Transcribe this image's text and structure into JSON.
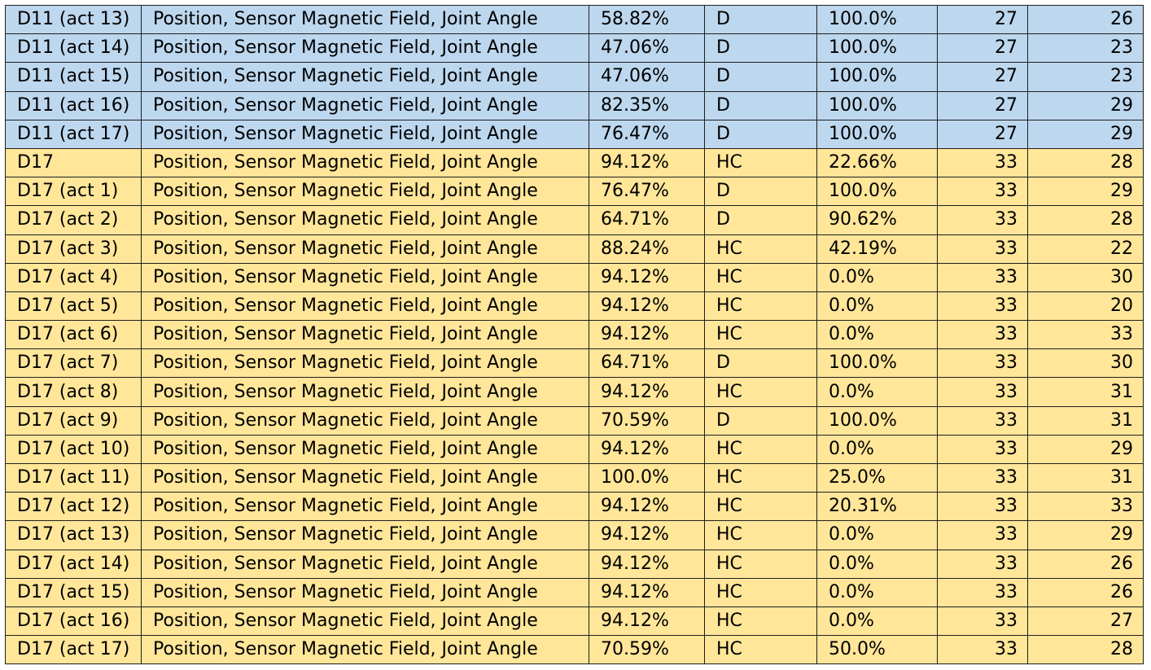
{
  "colors": {
    "blue_row": "#bdd7ee",
    "yellow_row": "#ffe699"
  },
  "table": {
    "rows": [
      {
        "condition": "D11 (act 13)",
        "sensors": "Position, Sensor Magnetic Field, Joint Angle",
        "accuracy": "58.82%",
        "class": "D",
        "percent": "100.0%",
        "n1": "27",
        "n2": "26",
        "group": "blue"
      },
      {
        "condition": "D11 (act 14)",
        "sensors": "Position, Sensor Magnetic Field, Joint Angle",
        "accuracy": "47.06%",
        "class": "D",
        "percent": "100.0%",
        "n1": "27",
        "n2": "23",
        "group": "blue"
      },
      {
        "condition": "D11 (act 15)",
        "sensors": "Position, Sensor Magnetic Field, Joint Angle",
        "accuracy": "47.06%",
        "class": "D",
        "percent": "100.0%",
        "n1": "27",
        "n2": "23",
        "group": "blue"
      },
      {
        "condition": "D11 (act 16)",
        "sensors": "Position, Sensor Magnetic Field, Joint Angle",
        "accuracy": "82.35%",
        "class": "D",
        "percent": "100.0%",
        "n1": "27",
        "n2": "29",
        "group": "blue"
      },
      {
        "condition": "D11 (act 17)",
        "sensors": "Position, Sensor Magnetic Field, Joint Angle",
        "accuracy": "76.47%",
        "class": "D",
        "percent": "100.0%",
        "n1": "27",
        "n2": "29",
        "group": "blue"
      },
      {
        "condition": "D17",
        "sensors": "Position, Sensor Magnetic Field, Joint Angle",
        "accuracy": "94.12%",
        "class": "HC",
        "percent": "22.66%",
        "n1": "33",
        "n2": "28",
        "group": "yellow"
      },
      {
        "condition": "D17 (act 1)",
        "sensors": "Position, Sensor Magnetic Field, Joint Angle",
        "accuracy": "76.47%",
        "class": "D",
        "percent": "100.0%",
        "n1": "33",
        "n2": "29",
        "group": "yellow"
      },
      {
        "condition": "D17 (act 2)",
        "sensors": "Position, Sensor Magnetic Field, Joint Angle",
        "accuracy": "64.71%",
        "class": "D",
        "percent": "90.62%",
        "n1": "33",
        "n2": "28",
        "group": "yellow"
      },
      {
        "condition": "D17 (act 3)",
        "sensors": "Position, Sensor Magnetic Field, Joint Angle",
        "accuracy": "88.24%",
        "class": "HC",
        "percent": "42.19%",
        "n1": "33",
        "n2": "22",
        "group": "yellow"
      },
      {
        "condition": "D17 (act 4)",
        "sensors": "Position, Sensor Magnetic Field, Joint Angle",
        "accuracy": "94.12%",
        "class": "HC",
        "percent": "0.0%",
        "n1": "33",
        "n2": "30",
        "group": "yellow"
      },
      {
        "condition": "D17 (act 5)",
        "sensors": "Position, Sensor Magnetic Field, Joint Angle",
        "accuracy": "94.12%",
        "class": "HC",
        "percent": "0.0%",
        "n1": "33",
        "n2": "20",
        "group": "yellow"
      },
      {
        "condition": "D17 (act 6)",
        "sensors": "Position, Sensor Magnetic Field, Joint Angle",
        "accuracy": "94.12%",
        "class": "HC",
        "percent": "0.0%",
        "n1": "33",
        "n2": "33",
        "group": "yellow"
      },
      {
        "condition": "D17 (act 7)",
        "sensors": "Position, Sensor Magnetic Field, Joint Angle",
        "accuracy": "64.71%",
        "class": "D",
        "percent": "100.0%",
        "n1": "33",
        "n2": "30",
        "group": "yellow"
      },
      {
        "condition": "D17 (act 8)",
        "sensors": "Position, Sensor Magnetic Field, Joint Angle",
        "accuracy": "94.12%",
        "class": "HC",
        "percent": "0.0%",
        "n1": "33",
        "n2": "31",
        "group": "yellow"
      },
      {
        "condition": "D17 (act 9)",
        "sensors": "Position, Sensor Magnetic Field, Joint Angle",
        "accuracy": "70.59%",
        "class": "D",
        "percent": "100.0%",
        "n1": "33",
        "n2": "31",
        "group": "yellow"
      },
      {
        "condition": "D17 (act 10)",
        "sensors": "Position, Sensor Magnetic Field, Joint Angle",
        "accuracy": "94.12%",
        "class": "HC",
        "percent": "0.0%",
        "n1": "33",
        "n2": "29",
        "group": "yellow"
      },
      {
        "condition": "D17 (act 11)",
        "sensors": "Position, Sensor Magnetic Field, Joint Angle",
        "accuracy": "100.0%",
        "class": "HC",
        "percent": "25.0%",
        "n1": "33",
        "n2": "31",
        "group": "yellow"
      },
      {
        "condition": "D17 (act 12)",
        "sensors": "Position, Sensor Magnetic Field, Joint Angle",
        "accuracy": "94.12%",
        "class": "HC",
        "percent": "20.31%",
        "n1": "33",
        "n2": "33",
        "group": "yellow"
      },
      {
        "condition": "D17 (act 13)",
        "sensors": "Position, Sensor Magnetic Field, Joint Angle",
        "accuracy": "94.12%",
        "class": "HC",
        "percent": "0.0%",
        "n1": "33",
        "n2": "29",
        "group": "yellow"
      },
      {
        "condition": "D17 (act 14)",
        "sensors": "Position, Sensor Magnetic Field, Joint Angle",
        "accuracy": "94.12%",
        "class": "HC",
        "percent": "0.0%",
        "n1": "33",
        "n2": "26",
        "group": "yellow"
      },
      {
        "condition": "D17 (act 15)",
        "sensors": "Position, Sensor Magnetic Field, Joint Angle",
        "accuracy": "94.12%",
        "class": "HC",
        "percent": "0.0%",
        "n1": "33",
        "n2": "26",
        "group": "yellow"
      },
      {
        "condition": "D17 (act 16)",
        "sensors": "Position, Sensor Magnetic Field, Joint Angle",
        "accuracy": "94.12%",
        "class": "HC",
        "percent": "0.0%",
        "n1": "33",
        "n2": "27",
        "group": "yellow"
      },
      {
        "condition": "D17 (act 17)",
        "sensors": "Position, Sensor Magnetic Field, Joint Angle",
        "accuracy": "70.59%",
        "class": "HC",
        "percent": "50.0%",
        "n1": "33",
        "n2": "28",
        "group": "yellow"
      }
    ]
  }
}
